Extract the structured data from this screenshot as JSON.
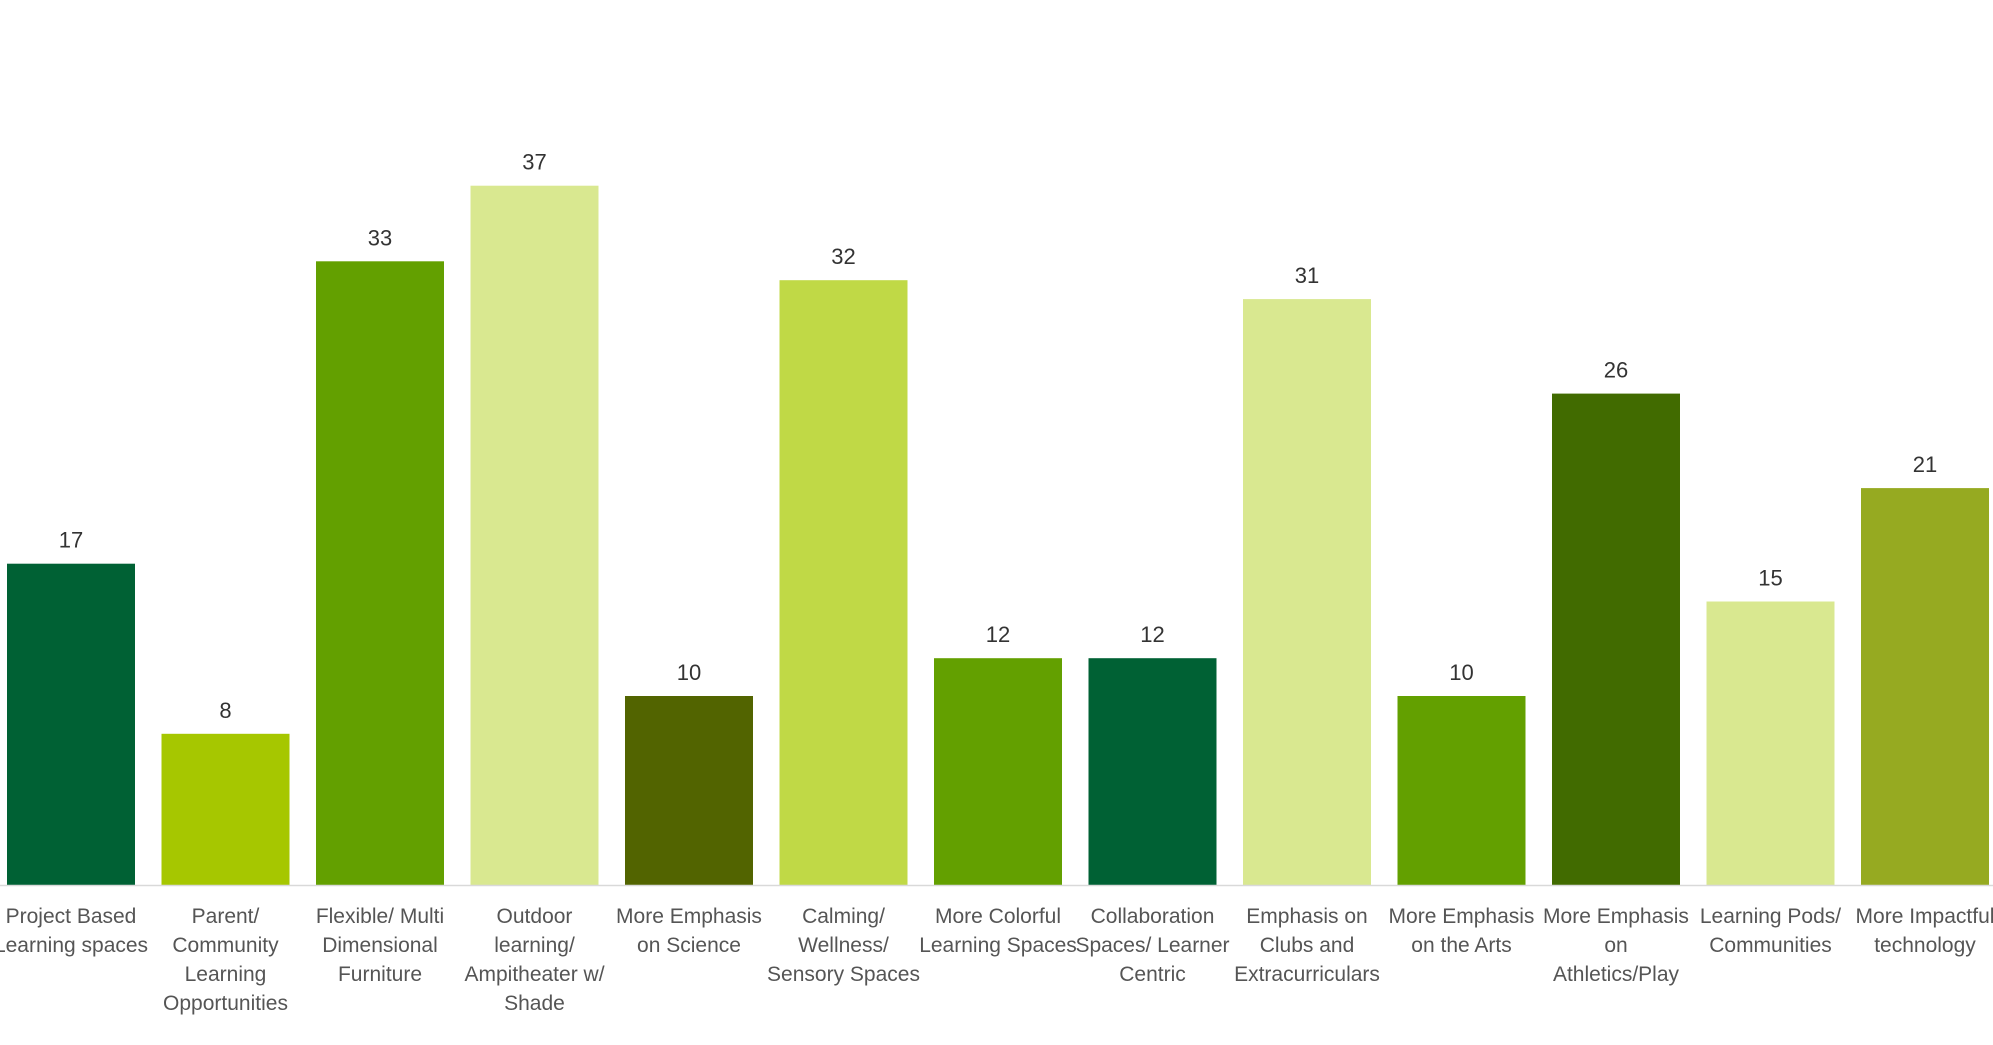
{
  "chart_data": {
    "type": "bar",
    "title": "",
    "xlabel": "",
    "ylabel": "",
    "ylim": [
      0,
      37
    ],
    "grid": false,
    "legend": "none",
    "categories": [
      [
        "Project Based",
        "Learning spaces"
      ],
      [
        "Parent/",
        "Community",
        "Learning",
        "Opportunities"
      ],
      [
        "Flexible/ Multi",
        "Dimensional",
        "Furniture"
      ],
      [
        "Outdoor",
        "learning/",
        "Ampitheater w/",
        "Shade"
      ],
      [
        "More Emphasis",
        "on Science"
      ],
      [
        "Calming/",
        "Wellness/",
        "Sensory Spaces"
      ],
      [
        "More Colorful",
        "Learning Spaces"
      ],
      [
        "Collaboration",
        "Spaces/ Learner",
        "Centric"
      ],
      [
        "Emphasis on",
        "Clubs and",
        "Extracurriculars"
      ],
      [
        "More Emphasis",
        "on the Arts"
      ],
      [
        "More Emphasis",
        "on",
        "Athletics/Play"
      ],
      [
        "Learning Pods/",
        "Communities"
      ],
      [
        "More Impactful",
        "technology"
      ]
    ],
    "values": [
      17,
      8,
      33,
      37,
      10,
      32,
      12,
      12,
      31,
      10,
      26,
      15,
      21
    ],
    "colors": [
      "#006134",
      "#a6c700",
      "#63a000",
      "#d9e890",
      "#526400",
      "#c0d946",
      "#63a000",
      "#006134",
      "#d9e890",
      "#63a000",
      "#416b00",
      "#d9e890",
      "#96aa21"
    ]
  }
}
